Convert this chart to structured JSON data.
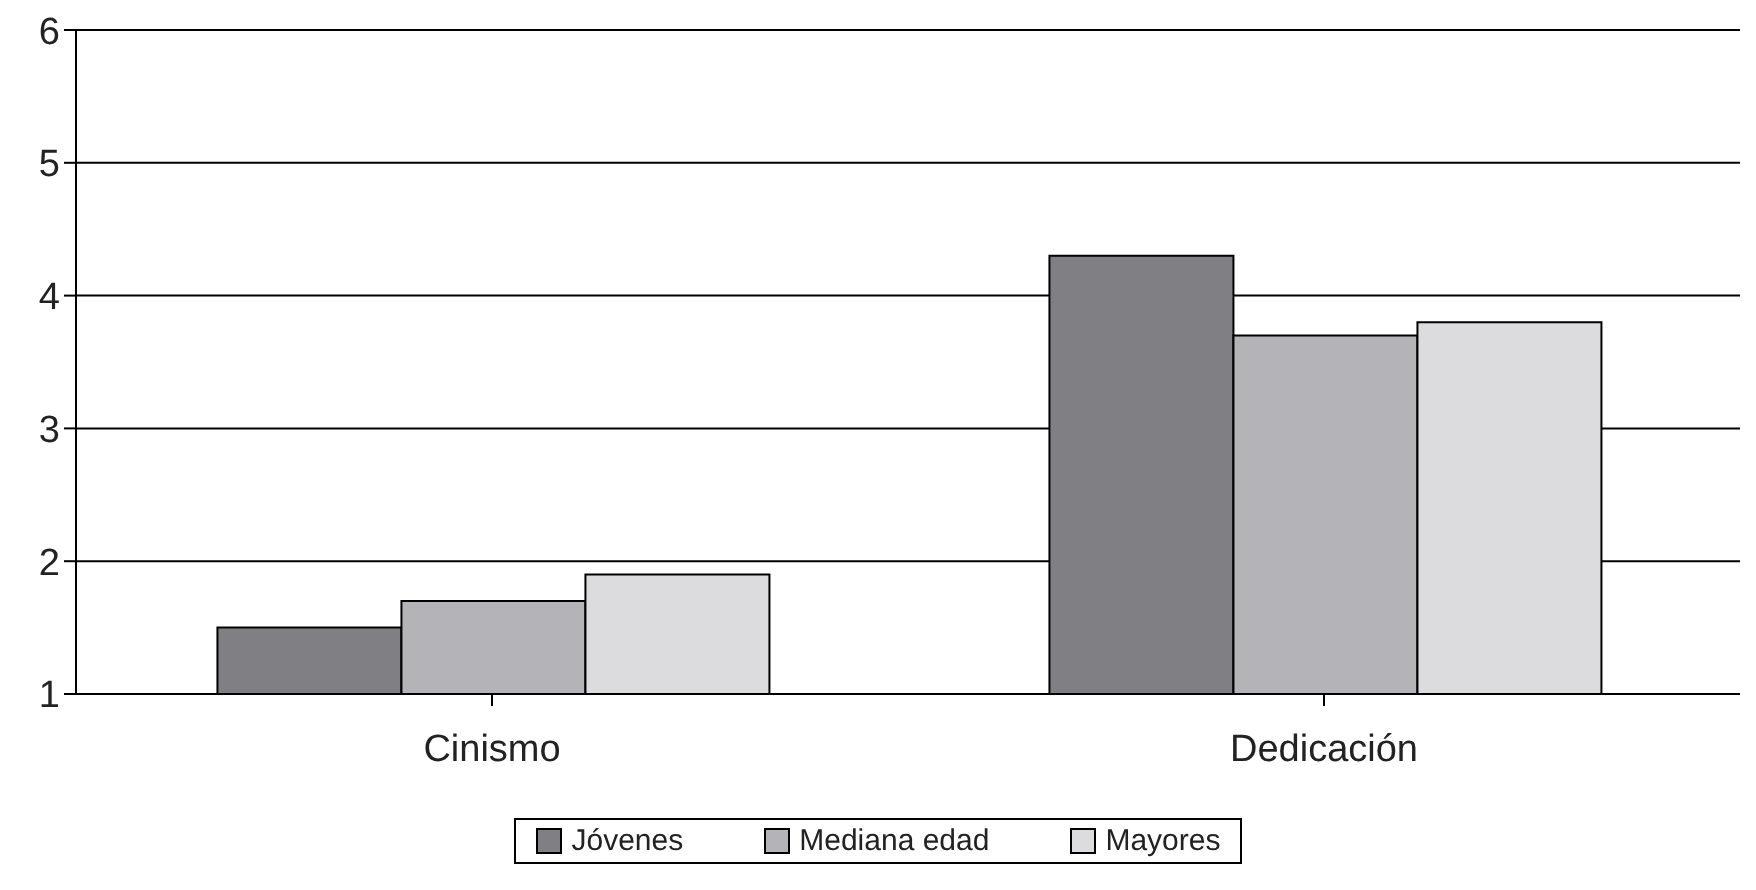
{
  "chart_data": {
    "type": "bar",
    "categories": [
      "Cinismo",
      "Dedicación"
    ],
    "series": [
      {
        "name": "Jóvenes",
        "color": "#7f7f84",
        "values": [
          1.5,
          4.3
        ]
      },
      {
        "name": "Mediana edad",
        "color": "#b3b3b8",
        "values": [
          1.7,
          3.7
        ]
      },
      {
        "name": "Mayores",
        "color": "#dcdcdf",
        "values": [
          1.9,
          3.8
        ]
      }
    ],
    "ylim": [
      1,
      6
    ],
    "yticks": [
      1,
      2,
      3,
      4,
      5,
      6
    ],
    "grid": "y",
    "legend": "bottom"
  }
}
